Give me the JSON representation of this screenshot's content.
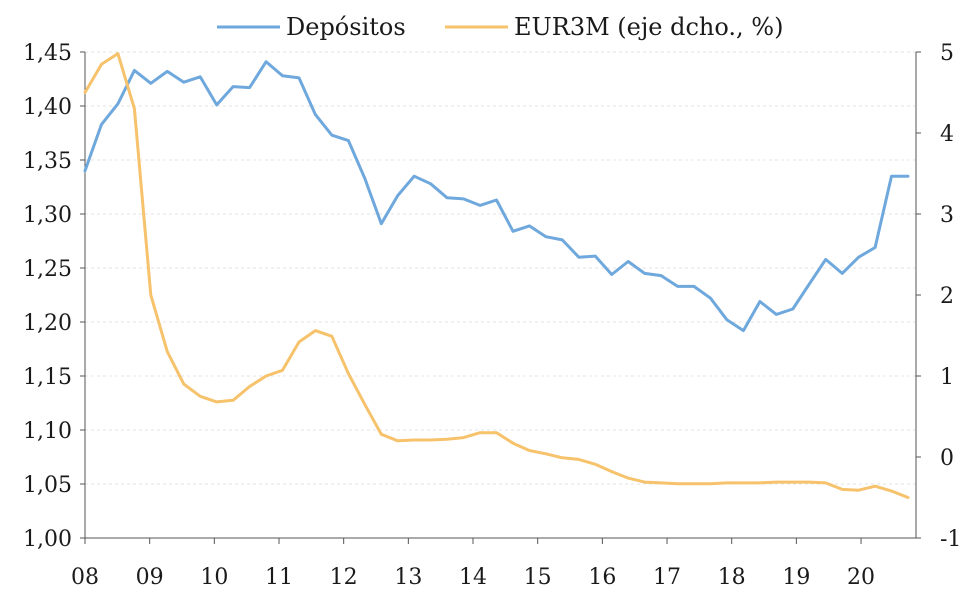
{
  "chart_data": {
    "type": "line",
    "x_labels": [
      "08",
      "09",
      "10",
      "11",
      "12",
      "13",
      "14",
      "15",
      "16",
      "17",
      "18",
      "19",
      "20"
    ],
    "y_left": {
      "range": [
        1.0,
        1.45
      ],
      "ticks": [
        "1,00",
        "1,05",
        "1,10",
        "1,15",
        "1,20",
        "1,25",
        "1,30",
        "1,35",
        "1,40",
        "1,45"
      ]
    },
    "y_right": {
      "range": [
        -1,
        5
      ],
      "ticks": [
        "-1",
        "0",
        "1",
        "2",
        "3",
        "4",
        "5"
      ]
    },
    "grid": true,
    "legend_position": "top",
    "series": [
      {
        "name": "Depósitos",
        "axis": "left",
        "color": "#6fa8dc",
        "values": [
          1.34,
          1.383,
          1.402,
          1.433,
          1.421,
          1.432,
          1.422,
          1.427,
          1.401,
          1.418,
          1.417,
          1.441,
          1.428,
          1.426,
          1.392,
          1.373,
          1.368,
          1.333,
          1.291,
          1.317,
          1.335,
          1.328,
          1.315,
          1.314,
          1.308,
          1.313,
          1.284,
          1.289,
          1.279,
          1.276,
          1.26,
          1.261,
          1.244,
          1.256,
          1.245,
          1.243,
          1.233,
          1.233,
          1.222,
          1.202,
          1.192,
          1.219,
          1.207,
          1.212,
          1.235,
          1.258,
          1.245,
          1.26,
          1.269,
          1.335,
          1.335
        ]
      },
      {
        "name": "EUR3M (eje dcho., %)",
        "axis": "right",
        "color": "#f6c26b",
        "values": [
          4.5,
          4.85,
          4.98,
          4.3,
          2.0,
          1.3,
          0.9,
          0.75,
          0.68,
          0.7,
          0.87,
          1.0,
          1.07,
          1.42,
          1.56,
          1.49,
          1.03,
          0.65,
          0.28,
          0.2,
          0.21,
          0.21,
          0.22,
          0.24,
          0.3,
          0.3,
          0.17,
          0.08,
          0.04,
          -0.01,
          -0.03,
          -0.09,
          -0.18,
          -0.26,
          -0.31,
          -0.32,
          -0.33,
          -0.33,
          -0.33,
          -0.32,
          -0.32,
          -0.32,
          -0.31,
          -0.31,
          -0.31,
          -0.32,
          -0.4,
          -0.41,
          -0.36,
          -0.42,
          -0.5
        ]
      }
    ]
  }
}
